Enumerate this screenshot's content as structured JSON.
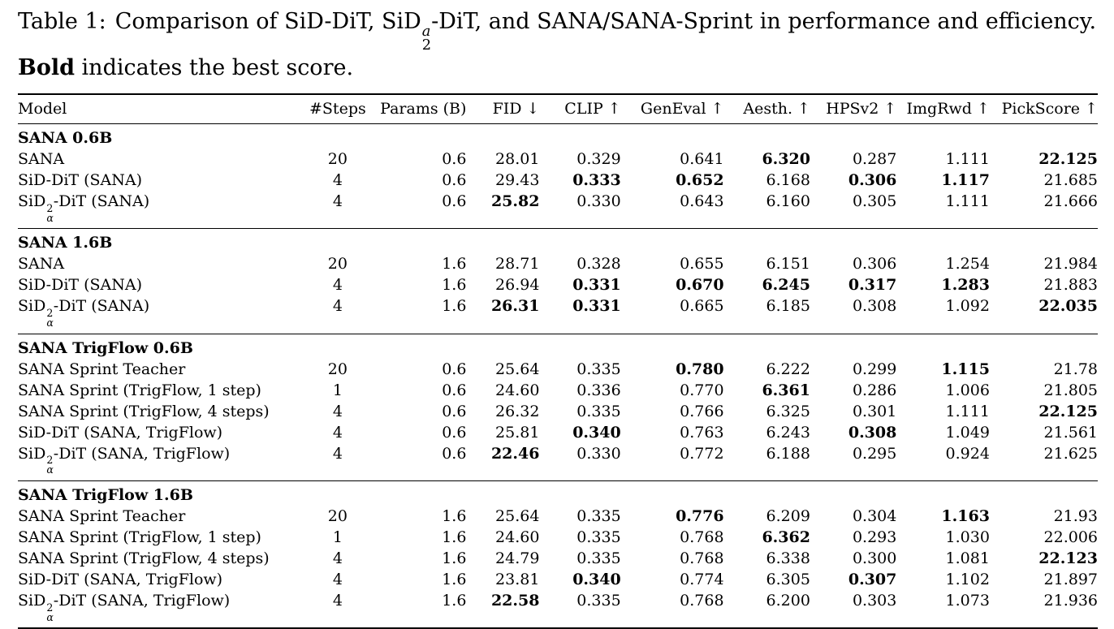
{
  "page": {
    "background_color": "#ffffff",
    "text_color": "#000000"
  },
  "caption": {
    "label": "Table 1:",
    "segments": [
      {
        "t": "Comparison of SiD-DiT, SiD"
      },
      {
        "sup": "a",
        "sub": "2"
      },
      {
        "t": "-DiT, and SANA/SANA-Sprint in performance and efficiency. "
      },
      {
        "t": "Bold",
        "b": true
      },
      {
        "t": " indicates the best score."
      }
    ]
  },
  "table": {
    "columns": [
      {
        "label": "Model"
      },
      {
        "label": "#Steps"
      },
      {
        "label": "Params (B)"
      },
      {
        "label": "FID ↓"
      },
      {
        "label": "CLIP ↑"
      },
      {
        "label": "GenEval ↑"
      },
      {
        "label": "Aesth. ↑"
      },
      {
        "label": "HPSv2 ↑"
      },
      {
        "label": "ImgRwd ↑"
      },
      {
        "label": "PickScore ↑"
      }
    ],
    "sections": [
      {
        "title": "SANA 0.6B",
        "rows": [
          {
            "model": [
              {
                "t": "SANA"
              }
            ],
            "cells": [
              "20",
              "0.6",
              "28.01",
              "0.329",
              "0.641",
              "6.320",
              "0.287",
              "1.111",
              "22.125"
            ],
            "bold": [
              5,
              8
            ]
          },
          {
            "model": [
              {
                "t": "SiD-DiT (SANA)"
              }
            ],
            "cells": [
              "4",
              "0.6",
              "29.43",
              "0.333",
              "0.652",
              "6.168",
              "0.306",
              "1.117",
              "21.685"
            ],
            "bold": [
              3,
              4,
              6,
              7
            ]
          },
          {
            "model": [
              {
                "t": "SiD"
              },
              {
                "sup": "2",
                "sub": "α"
              },
              {
                "t": "-DiT (SANA)"
              }
            ],
            "cells": [
              "4",
              "0.6",
              "25.82",
              "0.330",
              "0.643",
              "6.160",
              "0.305",
              "1.111",
              "21.666"
            ],
            "bold": [
              2
            ]
          }
        ]
      },
      {
        "title": "SANA 1.6B",
        "rows": [
          {
            "model": [
              {
                "t": "SANA"
              }
            ],
            "cells": [
              "20",
              "1.6",
              "28.71",
              "0.328",
              "0.655",
              "6.151",
              "0.306",
              "1.254",
              "21.984"
            ],
            "bold": []
          },
          {
            "model": [
              {
                "t": "SiD-DiT (SANA)"
              }
            ],
            "cells": [
              "4",
              "1.6",
              "26.94",
              "0.331",
              "0.670",
              "6.245",
              "0.317",
              "1.283",
              "21.883"
            ],
            "bold": [
              3,
              4,
              5,
              6,
              7
            ]
          },
          {
            "model": [
              {
                "t": "SiD"
              },
              {
                "sup": "2",
                "sub": "α"
              },
              {
                "t": "-DiT (SANA)"
              }
            ],
            "cells": [
              "4",
              "1.6",
              "26.31",
              "0.331",
              "0.665",
              "6.185",
              "0.308",
              "1.092",
              "22.035"
            ],
            "bold": [
              2,
              3,
              8
            ]
          }
        ]
      },
      {
        "title": "SANA TrigFlow 0.6B",
        "rows": [
          {
            "model": [
              {
                "t": "SANA Sprint Teacher"
              }
            ],
            "cells": [
              "20",
              "0.6",
              "25.64",
              "0.335",
              "0.780",
              "6.222",
              "0.299",
              "1.115",
              "21.78"
            ],
            "bold": [
              4,
              7
            ]
          },
          {
            "model": [
              {
                "t": "SANA Sprint (TrigFlow, 1 step)"
              }
            ],
            "cells": [
              "1",
              "0.6",
              "24.60",
              "0.336",
              "0.770",
              "6.361",
              "0.286",
              "1.006",
              "21.805"
            ],
            "bold": [
              5
            ]
          },
          {
            "model": [
              {
                "t": "SANA Sprint (TrigFlow, 4 steps)"
              }
            ],
            "cells": [
              "4",
              "0.6",
              "26.32",
              "0.335",
              "0.766",
              "6.325",
              "0.301",
              "1.111",
              "22.125"
            ],
            "bold": [
              8
            ]
          },
          {
            "model": [
              {
                "t": "SiD-DiT (SANA, TrigFlow)"
              }
            ],
            "cells": [
              "4",
              "0.6",
              "25.81",
              "0.340",
              "0.763",
              "6.243",
              "0.308",
              "1.049",
              "21.561"
            ],
            "bold": [
              3,
              6
            ]
          },
          {
            "model": [
              {
                "t": "SiD"
              },
              {
                "sup": "2",
                "sub": "α"
              },
              {
                "t": "-DiT (SANA, TrigFlow)"
              }
            ],
            "cells": [
              "4",
              "0.6",
              "22.46",
              "0.330",
              "0.772",
              "6.188",
              "0.295",
              "0.924",
              "21.625"
            ],
            "bold": [
              2
            ]
          }
        ]
      },
      {
        "title": "SANA TrigFlow 1.6B",
        "rows": [
          {
            "model": [
              {
                "t": "SANA Sprint Teacher"
              }
            ],
            "cells": [
              "20",
              "1.6",
              "25.64",
              "0.335",
              "0.776",
              "6.209",
              "0.304",
              "1.163",
              "21.93"
            ],
            "bold": [
              4,
              7
            ]
          },
          {
            "model": [
              {
                "t": "SANA Sprint (TrigFlow, 1 step)"
              }
            ],
            "cells": [
              "1",
              "1.6",
              "24.60",
              "0.335",
              "0.768",
              "6.362",
              "0.293",
              "1.030",
              "22.006"
            ],
            "bold": [
              5
            ]
          },
          {
            "model": [
              {
                "t": "SANA Sprint (TrigFlow, 4 steps)"
              }
            ],
            "cells": [
              "4",
              "1.6",
              "24.79",
              "0.335",
              "0.768",
              "6.338",
              "0.300",
              "1.081",
              "22.123"
            ],
            "bold": [
              8
            ]
          },
          {
            "model": [
              {
                "t": "SiD-DiT (SANA, TrigFlow)"
              }
            ],
            "cells": [
              "4",
              "1.6",
              "23.81",
              "0.340",
              "0.774",
              "6.305",
              "0.307",
              "1.102",
              "21.897"
            ],
            "bold": [
              3,
              6
            ]
          },
          {
            "model": [
              {
                "t": "SiD"
              },
              {
                "sup": "2",
                "sub": "α"
              },
              {
                "t": "-DiT (SANA, TrigFlow)"
              }
            ],
            "cells": [
              "4",
              "1.6",
              "22.58",
              "0.335",
              "0.768",
              "6.200",
              "0.303",
              "1.073",
              "21.936"
            ],
            "bold": [
              2
            ]
          }
        ]
      }
    ]
  }
}
